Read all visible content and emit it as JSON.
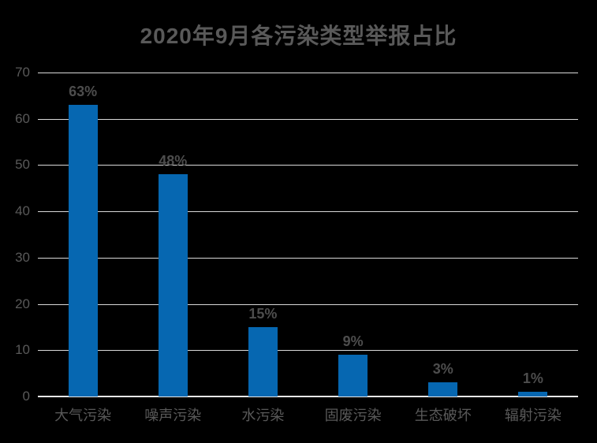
{
  "chart_data": {
    "type": "bar",
    "title": "2020年9月各污染类型举报占比",
    "categories": [
      "大气污染",
      "噪声污染",
      "水污染",
      "固废污染",
      "生态破坏",
      "辐射污染"
    ],
    "values": [
      63,
      48,
      15,
      9,
      3,
      1
    ],
    "value_labels": [
      "63%",
      "48%",
      "15%",
      "9%",
      "3%",
      "1%"
    ],
    "ylim": [
      0,
      70
    ],
    "yticks": [
      0,
      10,
      20,
      30,
      40,
      50,
      60,
      70
    ],
    "xlabel": "",
    "ylabel": "",
    "grid": true,
    "legend_position": "none",
    "colors": {
      "background": "#000000",
      "bar": "#0667B1",
      "gridline": "#D9D9D9",
      "axis_line": "#E8E8E8",
      "title_text": "#595959",
      "tick_text": "#595959",
      "category_text": "#595959",
      "data_label_text": "#4D4D4D"
    }
  }
}
